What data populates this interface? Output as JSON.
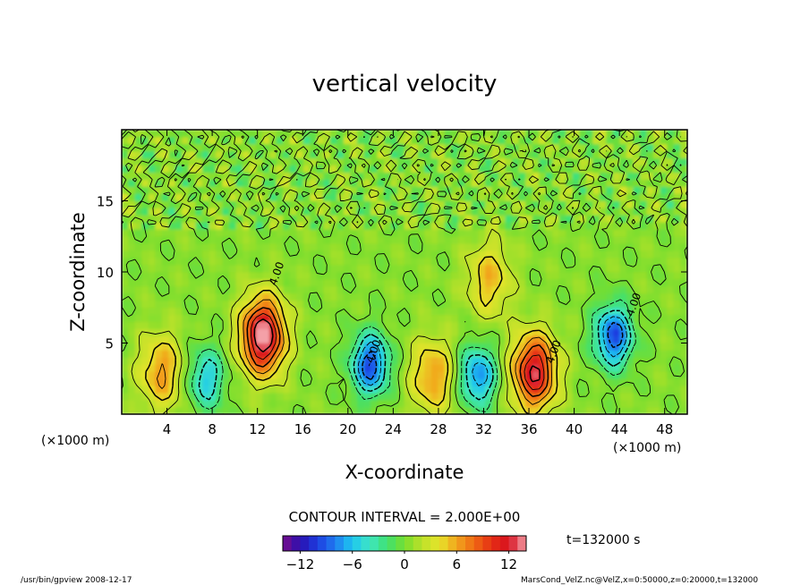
{
  "chart_data": {
    "type": "heatmap",
    "title": "vertical velocity",
    "xlabel": "X-coordinate",
    "ylabel": "Z-coordinate",
    "x_unit_left": "(×1000 m)",
    "x_unit_right": "(×1000 m)",
    "x_units": "×1000 m",
    "y_units": "×1000 m",
    "xlim": [
      0,
      50
    ],
    "ylim": [
      0,
      20
    ],
    "xticks": [
      4,
      8,
      12,
      16,
      20,
      24,
      28,
      32,
      36,
      40,
      44,
      48
    ],
    "yticks": [
      5,
      10,
      15
    ],
    "contour_interval_text": "CONTOUR INTERVAL = 2.000E+00",
    "time_text": "t=132000 s",
    "contour_labels": [
      {
        "text": "4.00",
        "x": 14,
        "z": 9.8
      },
      {
        "text": "-4.00",
        "x": 22.5,
        "z": 4.2
      },
      {
        "text": "4.00",
        "x": 38.5,
        "z": 4.3
      },
      {
        "text": "-4.00",
        "x": 45.5,
        "z": 7.5
      }
    ],
    "features": [
      {
        "kind": "updraft",
        "x": 12.5,
        "z": 5.5,
        "peak": 14
      },
      {
        "kind": "downdraft",
        "x": 22,
        "z": 3.5,
        "peak": -10
      },
      {
        "kind": "updraft",
        "x": 27.5,
        "z": 2.7,
        "peak": 6
      },
      {
        "kind": "downdraft",
        "x": 31.5,
        "z": 2.7,
        "peak": -8
      },
      {
        "kind": "updraft",
        "x": 36.5,
        "z": 3,
        "peak": 12
      },
      {
        "kind": "downdraft",
        "x": 43.5,
        "z": 5.5,
        "peak": -10
      },
      {
        "kind": "updraft",
        "x": 3.5,
        "z": 3,
        "peak": 6
      },
      {
        "kind": "downdraft",
        "x": 7.5,
        "z": 2.5,
        "peak": -6
      },
      {
        "kind": "updraft",
        "x": 32.5,
        "z": 9.5,
        "peak": 5
      }
    ],
    "colorbar": {
      "range": [
        -14,
        14
      ],
      "ticks": [
        -12,
        -6,
        0,
        6,
        12
      ],
      "colors": [
        "#7a0e8a",
        "#2a0fb0",
        "#1d3de0",
        "#1f7cf0",
        "#1ec6f0",
        "#3fe6c2",
        "#3fe071",
        "#77de2e",
        "#bde12a",
        "#e6e42a",
        "#f2a41d",
        "#ef6a14",
        "#e62f14",
        "#d71020",
        "#f4a0a8"
      ]
    }
  },
  "footer": {
    "left": "/usr/bin/gpview  2008-12-17",
    "right": "MarsCond_VelZ.nc@VelZ,x=0:50000,z=0:20000,t=132000"
  }
}
